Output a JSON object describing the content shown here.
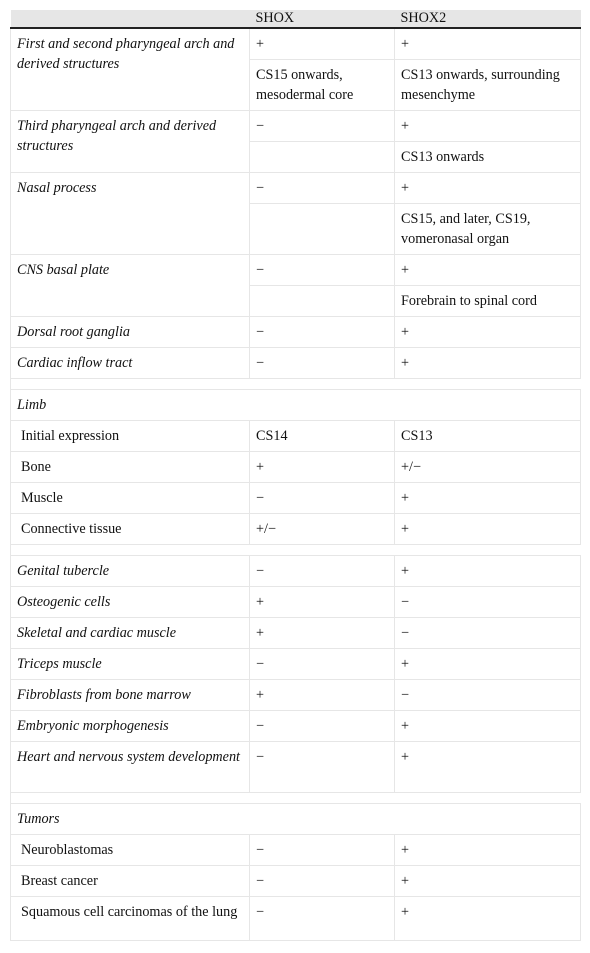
{
  "header": {
    "col1": "",
    "col2": "SHOX",
    "col3": "SHOX2"
  },
  "rows": {
    "r0": {
      "label": "First and second pharyngeal arch and derived structures",
      "a1": "+",
      "b1": "+",
      "a2": "CS15 onwards, mesodermal core",
      "b2": "CS13 onwards, surrounding mesenchyme"
    },
    "r1": {
      "label": "Third pharyngeal arch and derived structures",
      "a1": "−",
      "b1": "+",
      "a2": "",
      "b2": "CS13 onwards"
    },
    "r2": {
      "label": "Nasal process",
      "a1": "−",
      "b1": "+",
      "a2": "",
      "b2": "CS15, and later, CS19, vomeronasal organ"
    },
    "r3": {
      "label": "CNS basal plate",
      "a1": "−",
      "b1": "+",
      "a2": "",
      "b2": "Forebrain to spinal cord"
    },
    "r4": {
      "label": "Dorsal root ganglia",
      "a": "−",
      "b": "+"
    },
    "r5": {
      "label": "Cardiac inflow tract",
      "a": "−",
      "b": "+"
    },
    "limb": {
      "label": "Limb"
    },
    "r6": {
      "label": "Initial expression",
      "a": "CS14",
      "b": "CS13"
    },
    "r7": {
      "label": "Bone",
      "a": "+",
      "b": "+/−"
    },
    "r8": {
      "label": "Muscle",
      "a": "−",
      "b": "+"
    },
    "r9": {
      "label": "Connective tissue",
      "a": "+/−",
      "b": "+"
    },
    "r10": {
      "label": "Genital tubercle",
      "a": "−",
      "b": "+"
    },
    "r11": {
      "label": "Osteogenic cells",
      "a": "+",
      "b": "−"
    },
    "r12": {
      "label": "Skeletal and cardiac muscle",
      "a": "+",
      "b": "−"
    },
    "r13": {
      "label": "Triceps muscle",
      "a": "−",
      "b": "+"
    },
    "r14": {
      "label": "Fibroblasts from bone marrow",
      "a": "+",
      "b": "−"
    },
    "r15": {
      "label": "Embryonic morphogenesis",
      "a": "−",
      "b": "+"
    },
    "r16": {
      "label": "Heart and nervous system development",
      "a": "−",
      "b": "+"
    },
    "tumors": {
      "label": "Tumors"
    },
    "r17": {
      "label": "Neuroblastomas",
      "a": "−",
      "b": "+"
    },
    "r18": {
      "label": "Breast cancer",
      "a": "−",
      "b": "+"
    },
    "r19": {
      "label": "Squamous cell carcinomas of the lung",
      "a": "−",
      "b": "+"
    }
  }
}
